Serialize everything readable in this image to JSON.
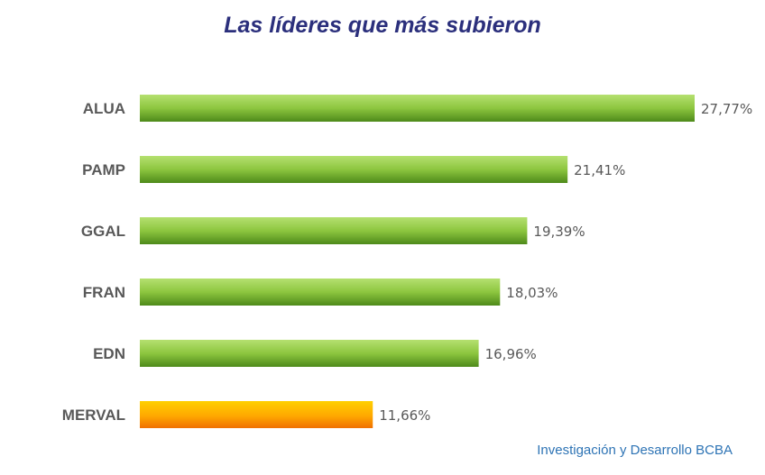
{
  "chart_data": {
    "type": "bar",
    "orientation": "horizontal",
    "title": "Las líderes que más subieron",
    "categories": [
      "ALUA",
      "PAMP",
      "GGAL",
      "FRAN",
      "EDN",
      "MERVAL"
    ],
    "values": [
      27.77,
      21.41,
      19.39,
      18.03,
      16.96,
      11.66
    ],
    "value_labels": [
      "27,77%",
      "21,41%",
      "19,39%",
      "18,03%",
      "16,96%",
      "11,66%"
    ],
    "unit": "%",
    "xlim": [
      0,
      27.77
    ],
    "grid": false,
    "legend": "none",
    "colors": {
      "leader_bar": "#8dc63f",
      "leader_bar_dark": "#4e8a1a",
      "index_bar": "#ffb000",
      "index_bar_dark": "#f07800",
      "highlight_category": "MERVAL"
    }
  },
  "footer": {
    "credit": "Investigación y Desarrollo BCBA"
  }
}
